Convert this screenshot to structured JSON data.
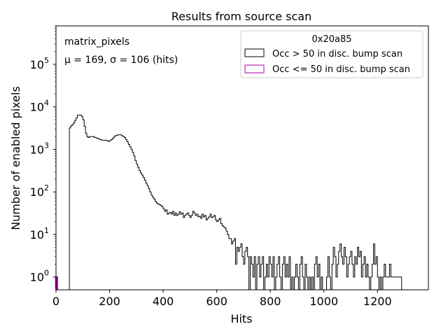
{
  "chart_data": {
    "type": "step-histogram",
    "title": "Results from source scan",
    "xlabel": "Hits",
    "ylabel": "Number of enabled pixels",
    "xlim": [
      0,
      1390
    ],
    "ylim": [
      0.5,
      800000
    ],
    "yscale": "log",
    "x_ticks": [
      0,
      200,
      400,
      600,
      800,
      1000,
      1200
    ],
    "x_tick_labels": [
      "0",
      "200",
      "400",
      "600",
      "800",
      "1000",
      "1200"
    ],
    "y_ticks": [
      1,
      10,
      100,
      1000,
      10000,
      100000
    ],
    "y_tick_labels": [
      {
        "base": "10",
        "exp": "0"
      },
      {
        "base": "10",
        "exp": "1"
      },
      {
        "base": "10",
        "exp": "2"
      },
      {
        "base": "10",
        "exp": "3"
      },
      {
        "base": "10",
        "exp": "4"
      },
      {
        "base": "10",
        "exp": "5"
      }
    ],
    "annotations": {
      "name": "matrix_pixels",
      "stats_prefix": "μ = 169, σ = 106 (hits)"
    },
    "legend": {
      "title": "0x20a85",
      "entries": [
        {
          "label": "Occ > 50 in disc. bump scan",
          "color": "#000000"
        },
        {
          "label": "Occ <= 50 in disc. bump scan",
          "color": "#aa00aa"
        }
      ]
    },
    "bin_width": 5,
    "series": [
      {
        "name": "Occ > 50 in disc. bump scan",
        "color": "#000000",
        "x_start": 0,
        "values": [
          0,
          0,
          0,
          0,
          0,
          0,
          0,
          0,
          0,
          0,
          3200,
          3600,
          3800,
          4200,
          4800,
          5500,
          6400,
          6400,
          6400,
          6000,
          5000,
          3500,
          2400,
          2000,
          1900,
          2000,
          2000,
          2000,
          1950,
          1900,
          1850,
          1800,
          1750,
          1700,
          1650,
          1650,
          1650,
          1650,
          1600,
          1550,
          1600,
          1700,
          1800,
          1950,
          2100,
          2150,
          2200,
          2200,
          2200,
          2100,
          2000,
          1900,
          1700,
          1500,
          1300,
          1150,
          1000,
          850,
          700,
          550,
          450,
          380,
          320,
          280,
          250,
          220,
          190,
          160,
          140,
          120,
          100,
          85,
          75,
          68,
          60,
          55,
          52,
          50,
          48,
          45,
          40,
          35,
          38,
          30,
          32,
          33,
          30,
          35,
          28,
          32,
          28,
          30,
          34,
          30,
          32,
          25,
          28,
          30,
          32,
          28,
          25,
          28,
          35,
          32,
          28,
          30,
          26,
          27,
          24,
          30,
          26,
          28,
          22,
          24,
          26,
          30,
          25,
          26,
          28,
          22,
          20,
          22,
          24,
          18,
          16,
          15,
          14,
          12,
          10,
          8,
          8,
          6,
          7,
          8,
          2,
          5,
          4,
          5,
          6,
          3,
          2,
          4,
          5,
          3,
          0,
          3,
          2,
          1,
          3,
          0,
          2,
          3,
          1,
          2,
          3,
          0,
          1,
          2,
          1,
          3,
          2,
          1,
          3,
          0,
          1,
          2,
          3,
          1,
          0,
          2,
          3,
          1,
          2,
          1,
          3,
          0,
          1,
          0,
          1,
          2,
          1,
          0,
          2,
          3,
          1,
          0,
          2,
          1,
          0,
          1,
          0,
          1,
          0,
          2,
          3,
          1,
          2,
          0,
          1,
          0,
          0,
          0,
          1,
          3,
          1,
          0,
          2,
          5,
          3,
          1,
          2,
          4,
          6,
          3,
          2,
          5,
          3,
          1,
          2,
          3,
          4,
          2,
          1,
          3,
          2,
          5,
          3,
          4,
          1,
          2,
          3,
          1,
          2,
          1,
          0,
          1,
          2,
          6,
          2,
          3,
          1,
          0,
          1,
          0,
          1,
          2,
          1,
          1,
          1,
          2,
          1,
          1,
          1,
          1,
          1,
          1,
          1,
          1
        ]
      },
      {
        "name": "Occ <= 50 in disc. bump scan",
        "color": "#aa00aa",
        "x_start": 0,
        "values": [
          1
        ]
      }
    ]
  }
}
